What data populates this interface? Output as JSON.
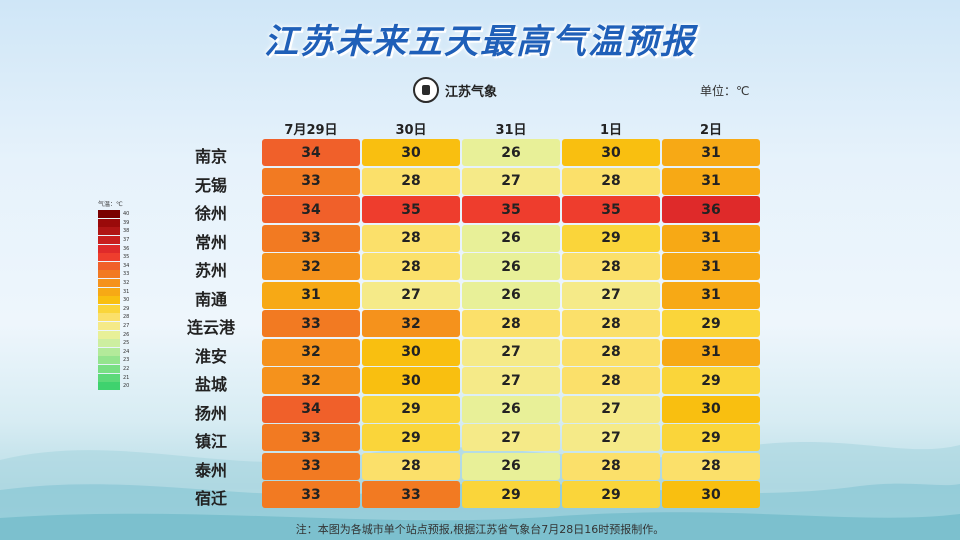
{
  "title": "江苏未来五天最高气温预报",
  "logo_text": "江苏气象",
  "unit": "单位：℃",
  "note": "注：本图为各城市单个站点预报,根据江苏省气象台7月28日16时预报制作。",
  "legend": {
    "title": "气温：℃",
    "levels": [
      40,
      39,
      38,
      37,
      36,
      35,
      34,
      33,
      32,
      31,
      30,
      29,
      28,
      27,
      26,
      25,
      24,
      23,
      22,
      21,
      20
    ],
    "colors": [
      "#7a0000",
      "#9a0a0a",
      "#b01515",
      "#c81e1e",
      "#df2a2a",
      "#ee3d2d",
      "#f0602a",
      "#f27a22",
      "#f5921c",
      "#f7a915",
      "#f9bf10",
      "#fad53a",
      "#fbe06a",
      "#f5ea88",
      "#e8f098",
      "#cdeea0",
      "#b3ea9a",
      "#94e48e",
      "#78df84",
      "#5cd979",
      "#3fd26e"
    ]
  },
  "chart_data": {
    "type": "heatmap",
    "title": "江苏未来五天最高气温预报",
    "unit": "℃",
    "columns": [
      "7月29日",
      "30日",
      "31日",
      "1日",
      "2日"
    ],
    "rows": [
      "南京",
      "无锡",
      "徐州",
      "常州",
      "苏州",
      "南通",
      "连云港",
      "淮安",
      "盐城",
      "扬州",
      "镇江",
      "泰州",
      "宿迁"
    ],
    "values": [
      [
        34,
        30,
        26,
        30,
        31
      ],
      [
        33,
        28,
        27,
        28,
        31
      ],
      [
        34,
        35,
        35,
        35,
        36
      ],
      [
        33,
        28,
        26,
        29,
        31
      ],
      [
        32,
        28,
        26,
        28,
        31
      ],
      [
        31,
        27,
        26,
        27,
        31
      ],
      [
        33,
        32,
        28,
        28,
        29
      ],
      [
        32,
        30,
        27,
        28,
        31
      ],
      [
        32,
        30,
        27,
        28,
        29
      ],
      [
        34,
        29,
        26,
        27,
        30
      ],
      [
        33,
        29,
        27,
        27,
        29
      ],
      [
        33,
        28,
        26,
        28,
        28
      ],
      [
        33,
        33,
        29,
        29,
        30
      ]
    ]
  }
}
